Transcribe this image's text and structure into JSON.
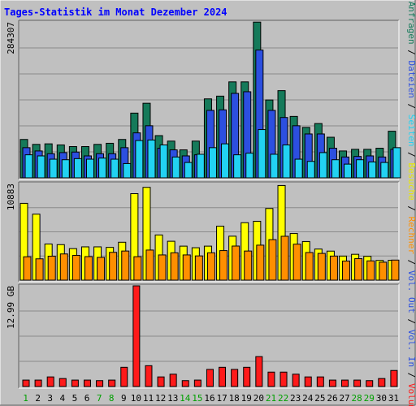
{
  "chart_data": {
    "type": "bar",
    "title": "Tages-Statistik im Monat Dezember 2024",
    "categories": [
      "1",
      "2",
      "3",
      "4",
      "5",
      "6",
      "7",
      "8",
      "9",
      "10",
      "11",
      "12",
      "13",
      "14",
      "15",
      "16",
      "17",
      "18",
      "19",
      "20",
      "21",
      "22",
      "23",
      "24",
      "25",
      "26",
      "27",
      "28",
      "29",
      "30",
      "31"
    ],
    "weekend_days": [
      "1",
      "7",
      "8",
      "14",
      "15",
      "21",
      "22",
      "28",
      "29"
    ],
    "grid": true,
    "panels": [
      {
        "id": "hits",
        "max_label": "284307",
        "ylim": [
          0,
          284307
        ],
        "series": [
          {
            "name": "Anfragen",
            "color": "#157a5a",
            "values": [
              70000,
              61000,
              62000,
              60000,
              57000,
              57000,
              61000,
              63000,
              70000,
              118000,
              136000,
              77000,
              67000,
              51000,
              67000,
              144000,
              149000,
              175000,
              175000,
              284000,
              142000,
              159000,
              112000,
              92000,
              99000,
              74000,
              49000,
              52000,
              52000,
              54000,
              85000
            ]
          },
          {
            "name": "Dateien",
            "color": "#2c4fe0",
            "values": [
              55000,
              49000,
              44000,
              46000,
              47000,
              40000,
              44000,
              44000,
              55000,
              82000,
              95000,
              54000,
              51000,
              40000,
              42000,
              123000,
              124000,
              154000,
              157000,
              233000,
              123000,
              110000,
              95000,
              80000,
              80000,
              54000,
              38000,
              39000,
              40000,
              38000,
              52000
            ]
          },
          {
            "name": "Seiten",
            "color": "#22d2f2",
            "values": [
              42000,
              40000,
              34000,
              33000,
              35000,
              34000,
              36000,
              34000,
              26000,
              68000,
              69000,
              60000,
              38000,
              28000,
              43000,
              55000,
              62000,
              42000,
              45000,
              88000,
              43000,
              60000,
              34000,
              30000,
              46000,
              33000,
              25000,
              33000,
              29000,
              28000,
              55000
            ]
          }
        ]
      },
      {
        "id": "visits",
        "max_label": "10883",
        "ylim": [
          0,
          10883
        ],
        "series": [
          {
            "name": "Besuche",
            "color": "#ffff00",
            "values": [
              8650,
              7430,
              4070,
              4000,
              3550,
              3750,
              3750,
              3690,
              4270,
              9740,
              10450,
              5090,
              4380,
              3830,
              3650,
              3830,
              6080,
              4950,
              6470,
              6630,
              8070,
              10660,
              5250,
              4350,
              3500,
              3270,
              2710,
              2910,
              2680,
              2220,
              2240
            ]
          },
          {
            "name": "Rechner",
            "color": "#ff8f00",
            "values": [
              2630,
              2400,
              2700,
              2950,
              2790,
              2650,
              2560,
              3130,
              3280,
              2640,
              3390,
              2840,
              3080,
              2840,
              2730,
              3080,
              3330,
              3840,
              3280,
              3940,
              4560,
              4940,
              4050,
              3110,
              3010,
              2710,
              2150,
              2420,
              2170,
              2020,
              2260
            ]
          }
        ]
      },
      {
        "id": "volume",
        "max_label": "12.99 GB",
        "ylim": [
          0,
          12.99
        ],
        "series": [
          {
            "name": "Volumen",
            "color": "#ff1a1a",
            "values": [
              0.83,
              0.83,
              1.24,
              1.03,
              0.83,
              0.83,
              0.76,
              0.83,
              2.48,
              12.99,
              2.69,
              1.24,
              1.59,
              0.76,
              0.83,
              2.21,
              2.48,
              2.21,
              2.48,
              3.86,
              1.86,
              1.86,
              1.59,
              1.24,
              1.24,
              0.83,
              0.83,
              0.83,
              0.76,
              1.03,
              2.07
            ]
          }
        ]
      }
    ],
    "right_legend": [
      {
        "text": "Anfragen",
        "color": "#157a5a"
      },
      {
        "text": " / ",
        "color": "#000000"
      },
      {
        "text": "Dateien",
        "color": "#2c4fe0"
      },
      {
        "text": " / ",
        "color": "#000000"
      },
      {
        "text": "Seiten",
        "color": "#22d2f2"
      },
      {
        "text": " / ",
        "color": "#000000"
      },
      {
        "text": "Besuche",
        "color": "#e8e800"
      },
      {
        "text": " / ",
        "color": "#000000"
      },
      {
        "text": "Rechner",
        "color": "#ff8f00"
      },
      {
        "text": " / ",
        "color": "#000000"
      },
      {
        "text": "Vol. Out",
        "color": "#2c4fe0"
      },
      {
        "text": " / ",
        "color": "#000000"
      },
      {
        "text": "Vol. In",
        "color": "#2c4fe0"
      },
      {
        "text": " / ",
        "color": "#000000"
      },
      {
        "text": "Volumen",
        "color": "#ff1a1a"
      }
    ],
    "colors": {
      "background": "#c0c0c0",
      "title": "#0000ff",
      "weekday_label": "#000000",
      "weekend_label": "#00a000"
    }
  }
}
